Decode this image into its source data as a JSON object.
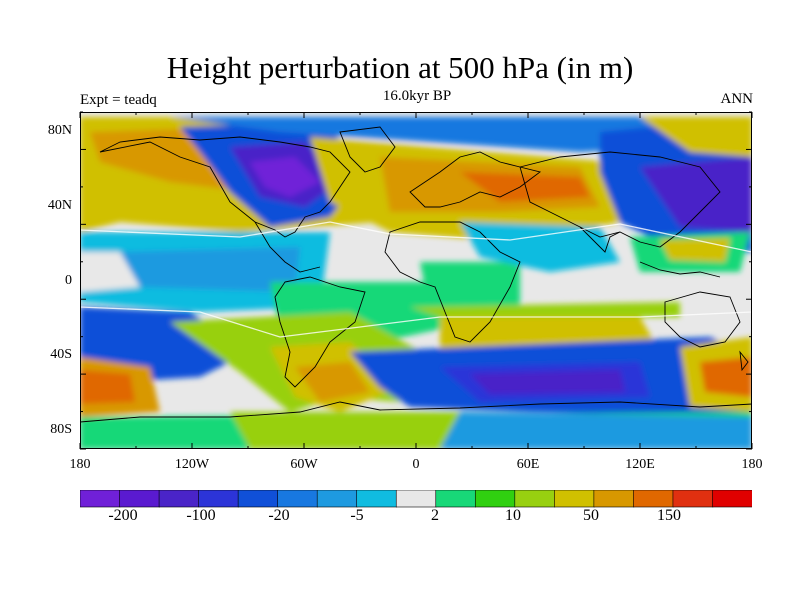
{
  "title": "Height perturbation at 500 hPa (in m)",
  "subtitle": "16.0kyr BP",
  "left_label": "Expt = teadq",
  "right_label": "ANN",
  "lat_ticks": [
    "80N",
    "40N",
    "0",
    "40S",
    "80S"
  ],
  "lon_ticks": [
    "180",
    "120W",
    "60W",
    "0",
    "60E",
    "120E",
    "180"
  ],
  "colorbar": {
    "labels": [
      "-200",
      "-100",
      "-20",
      "-5",
      "2",
      "10",
      "50",
      "150"
    ],
    "colors": [
      "#7020d8",
      "#5a1ad0",
      "#4a24c8",
      "#2c34d8",
      "#1050d8",
      "#1878e0",
      "#1e9ae0",
      "#10bce0",
      "#e8e8e8",
      "#18d878",
      "#30d010",
      "#98d010",
      "#d0c000",
      "#d89800",
      "#e06800",
      "#e03010",
      "#e00000"
    ]
  },
  "chart_data": {
    "type": "heatmap",
    "title": "Height perturbation at 500 hPa (in m)",
    "subtitle": "16.0kyr BP",
    "experiment": "teadq",
    "season": "ANN",
    "x_range": [
      -180,
      180
    ],
    "y_range": [
      -90,
      90
    ],
    "contour_levels": [
      "-200",
      "-100",
      "-20",
      "-5",
      "2",
      "10",
      "50",
      "150"
    ]
  }
}
